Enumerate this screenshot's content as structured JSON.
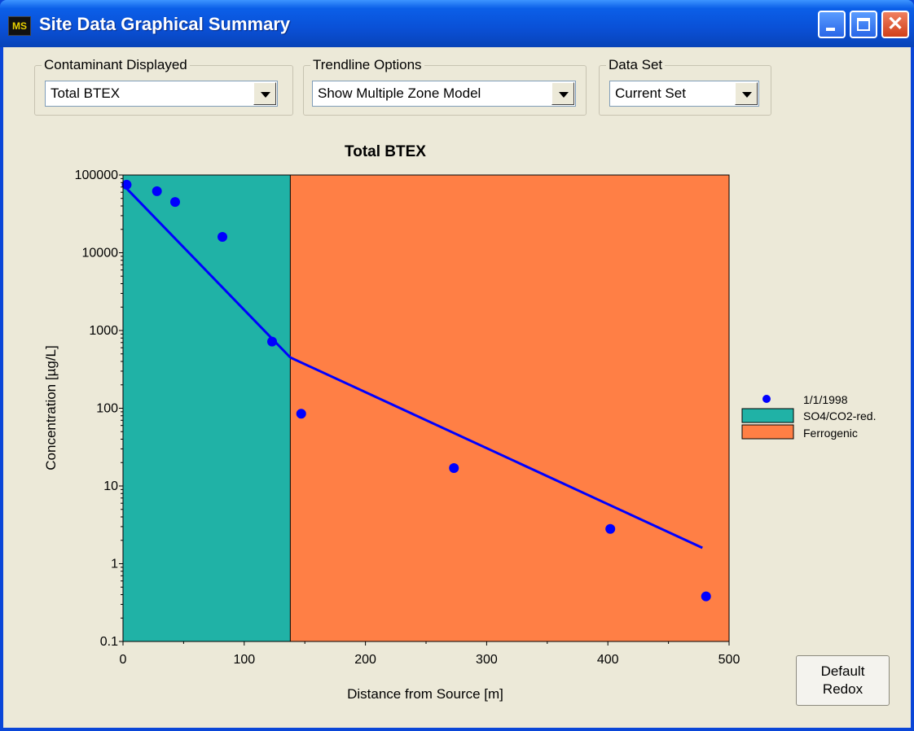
{
  "window": {
    "title": "Site Data Graphical Summary",
    "app_icon_text": "MS"
  },
  "controls": {
    "contaminant": {
      "label": "Contaminant Displayed",
      "value": "Total BTEX"
    },
    "trendline": {
      "label": "Trendline Options",
      "value": "Show Multiple Zone Model"
    },
    "dataset": {
      "label": "Data Set",
      "value": "Current Set"
    }
  },
  "buttons": {
    "default_redox_line1": "Default",
    "default_redox_line2": "Redox"
  },
  "colors": {
    "zone1": "#20b2a6",
    "zone2": "#ff7f45",
    "series": "#0000ff"
  },
  "chart_data": {
    "type": "scatter",
    "title": "Total BTEX",
    "xlabel": "Distance from Source [m]",
    "ylabel": "Concentration  [µg/L]",
    "xlim": [
      0,
      500
    ],
    "ylim": [
      0.1,
      100000
    ],
    "yscale": "log",
    "x_ticks": [
      "0",
      "100",
      "200",
      "300",
      "400",
      "500"
    ],
    "y_ticks": [
      "0.1",
      "1",
      "10",
      "100",
      "1000",
      "10000",
      "100000"
    ],
    "zones": [
      {
        "name": "SO4/CO2-red.",
        "x_start": 0,
        "x_end": 138,
        "color": "#20b2a6"
      },
      {
        "name": "Ferrogenic",
        "x_start": 138,
        "x_end": 500,
        "color": "#ff7f45"
      }
    ],
    "series": [
      {
        "name": "1/1/1998",
        "points": [
          {
            "x": 3,
            "y": 75000
          },
          {
            "x": 28,
            "y": 62000
          },
          {
            "x": 43,
            "y": 45000
          },
          {
            "x": 82,
            "y": 16000
          },
          {
            "x": 123,
            "y": 720
          },
          {
            "x": 147,
            "y": 85
          },
          {
            "x": 273,
            "y": 17
          },
          {
            "x": 402,
            "y": 2.8
          },
          {
            "x": 481,
            "y": 0.38
          }
        ]
      }
    ],
    "trendline": {
      "segments": [
        [
          {
            "x": 0,
            "y": 75000
          },
          {
            "x": 138,
            "y": 450
          }
        ],
        [
          {
            "x": 138,
            "y": 450
          },
          {
            "x": 478,
            "y": 1.6
          }
        ]
      ]
    },
    "legend": {
      "position": "right",
      "entries": [
        "1/1/1998",
        "SO4/CO2-red.",
        "Ferrogenic"
      ]
    }
  }
}
